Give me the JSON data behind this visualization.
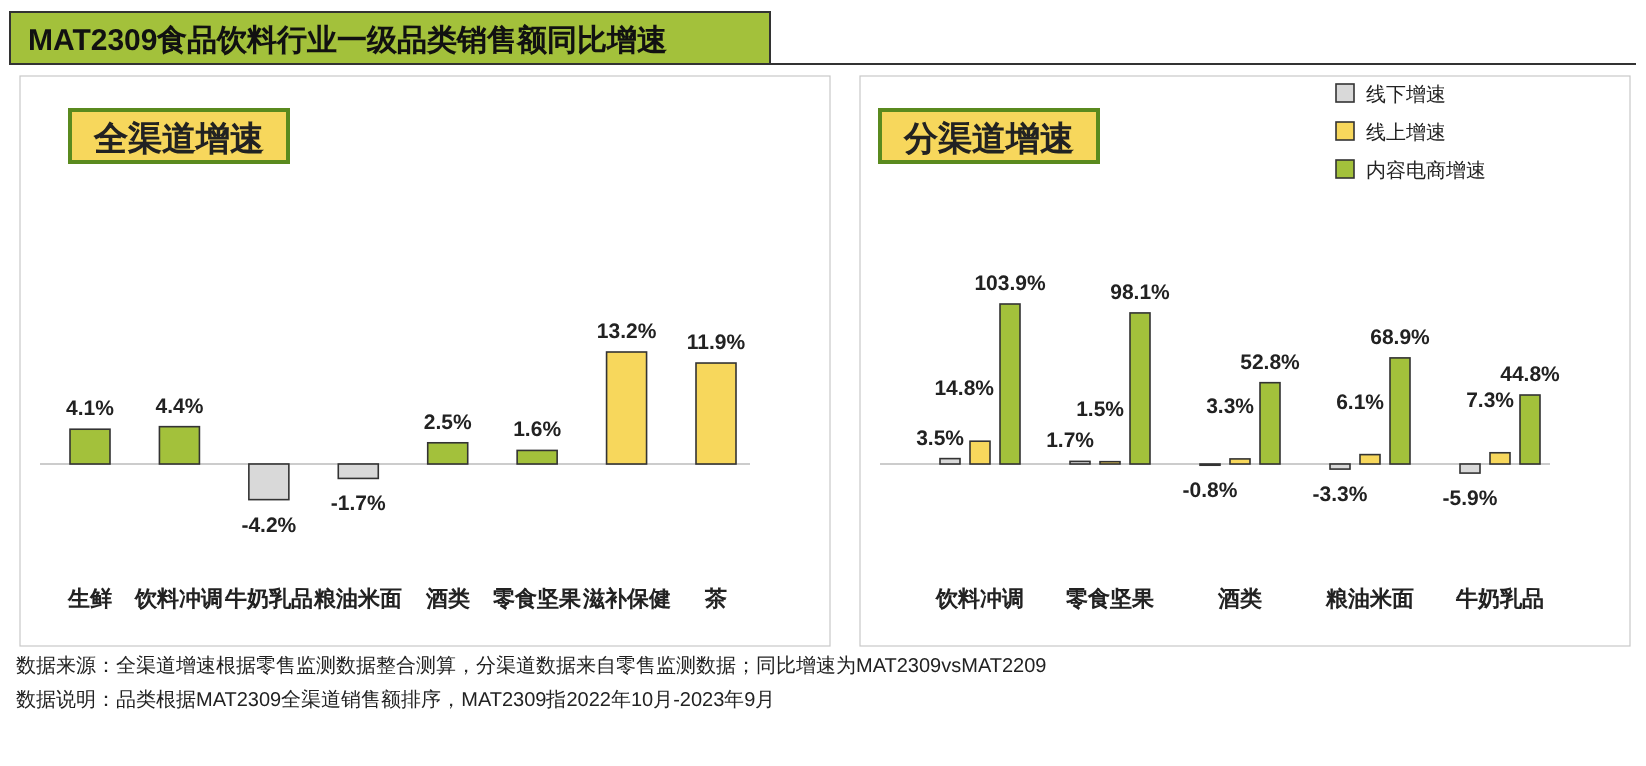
{
  "chart_data": [
    {
      "type": "bar",
      "title": "全渠道增速",
      "categories": [
        "生鲜",
        "饮料冲调",
        "牛奶乳品",
        "粮油米面",
        "酒类",
        "零食坚果",
        "滋补保健",
        "茶"
      ],
      "values": [
        4.1,
        4.4,
        -4.2,
        -1.7,
        2.5,
        1.6,
        13.2,
        11.9
      ],
      "value_labels": [
        "4.1%",
        "4.4%",
        "-4.2%",
        "-1.7%",
        "2.5%",
        "1.6%",
        "13.2%",
        "11.9%"
      ],
      "colors": [
        "#a3c13b",
        "#a3c13b",
        "#d9d9d9",
        "#d9d9d9",
        "#a3c13b",
        "#a3c13b",
        "#f7d75c",
        "#f7d75c"
      ],
      "annotations": [
        "MAT2309食品饮料行业一级品类销售额同比增速",
        "数据来源：全渠道增速根据零售监测数据整合测算，分渠道数据来自零售监测数据；同比增速为MAT2309vsMAT2209",
        "数据说明：品类根据MAT2309全渠道销售额排序，MAT2309指2022年10月-2023年9月"
      ]
    },
    {
      "type": "bar",
      "title": "分渠道增速",
      "categories": [
        "饮料冲调",
        "零食坚果",
        "酒类",
        "粮油米面",
        "牛奶乳品"
      ],
      "legend": "top right",
      "series": [
        {
          "name": "线下增速",
          "color": "#d9d9d9",
          "values": [
            3.5,
            1.7,
            -0.8,
            -3.3,
            -5.9
          ],
          "value_labels": [
            "3.5%",
            "1.7%",
            "-0.8%",
            "-3.3%",
            "-5.9%"
          ]
        },
        {
          "name": "线上增速",
          "color": "#f7d75c",
          "values": [
            14.8,
            1.5,
            3.3,
            6.1,
            7.3
          ],
          "value_labels": [
            "14.8%",
            "1.5%",
            "3.3%",
            "6.1%",
            "7.3%"
          ]
        },
        {
          "name": "内容电商增速",
          "color": "#a3c13b",
          "values": [
            103.9,
            98.1,
            52.8,
            68.9,
            44.8
          ],
          "value_labels": [
            "103.9%",
            "98.1%",
            "52.8%",
            "68.9%",
            "44.8%"
          ]
        }
      ]
    }
  ]
}
